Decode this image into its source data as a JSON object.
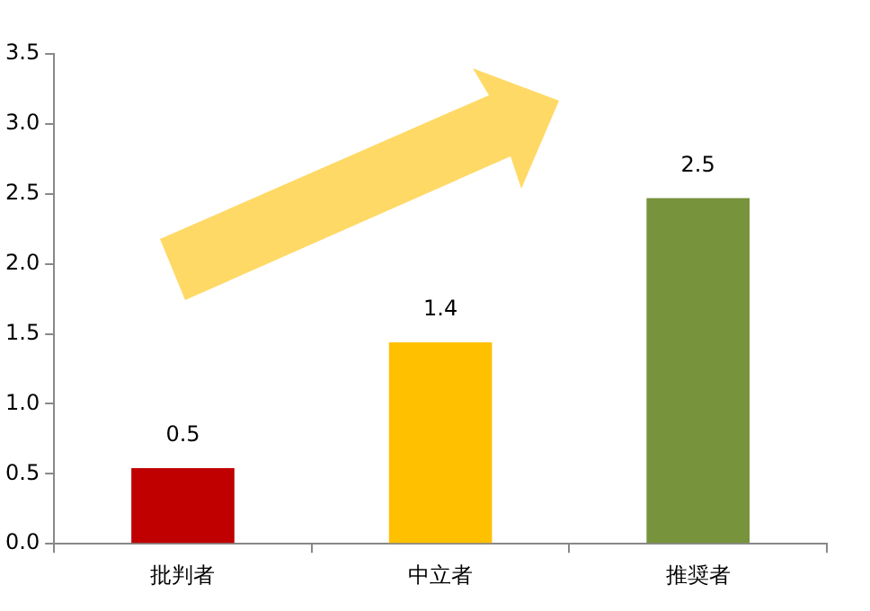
{
  "chart_data": {
    "type": "bar",
    "categories": [
      "批判者",
      "中立者",
      "推奨者"
    ],
    "values": [
      0.54,
      1.44,
      2.47
    ],
    "colors": [
      "#c00000",
      "#ffc000",
      "#77933c"
    ],
    "value_labels": [
      "0.5",
      "1.4",
      "2.5"
    ],
    "ylim": [
      0,
      3.5
    ],
    "yticks": [
      {
        "value": 0,
        "label": "0.0"
      },
      {
        "value": 0.5,
        "label": "0.5"
      },
      {
        "value": 1,
        "label": "1.0"
      },
      {
        "value": 1.5,
        "label": "1.5"
      },
      {
        "value": 2,
        "label": "2.0"
      },
      {
        "value": 2.5,
        "label": "2.5"
      },
      {
        "value": 3,
        "label": "3.0"
      },
      {
        "value": 3.5,
        "label": "3.5"
      }
    ],
    "grid": false,
    "legend": false
  }
}
